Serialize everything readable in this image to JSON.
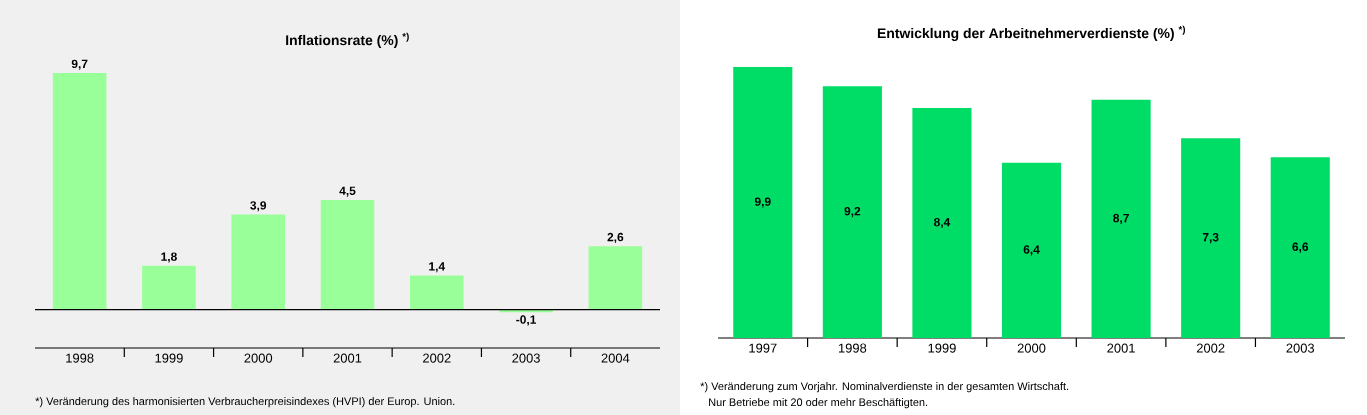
{
  "chart_data": [
    {
      "type": "bar",
      "title": "Inflationsrate (%) $^{*)}$",
      "categories": [
        "1998",
        "1999",
        "2000",
        "2001",
        "2002",
        "2003",
        "2004"
      ],
      "values": [
        9.7,
        1.8,
        3.9,
        4.5,
        1.4,
        -0.1,
        2.6
      ],
      "color": "#99ff99",
      "value_labels": [
        "9,7",
        "1,8",
        "3,9",
        "4,5",
        "1,4",
        "-0,1",
        "2,6"
      ],
      "annotations": [
        "*) Veränderung des harmonisierten Verbraucherpreisindexes (HVPI) der Europ. Union."
      ]
    },
    {
      "type": "bar",
      "title": "Entwicklung der Arbeitnehmerverdienste (%) $^{*)}$",
      "categories": [
        "1997",
        "1998",
        "1999",
        "2000",
        "2001",
        "2002",
        "2003"
      ],
      "values": [
        9.9,
        9.2,
        8.4,
        6.4,
        8.7,
        7.3,
        6.6
      ],
      "color": "#00dd66",
      "value_labels": [
        "9,9",
        "9,2",
        "8,4",
        "6,4",
        "8,7",
        "7,3",
        "6,6"
      ],
      "annotations": [
        "*) Veränderung zum Vorjahr. Nominalverdienste in der gesamten Wirtschaft.",
        "Nur Betriebe mit 20 oder mehr Beschäftigten."
      ]
    }
  ]
}
